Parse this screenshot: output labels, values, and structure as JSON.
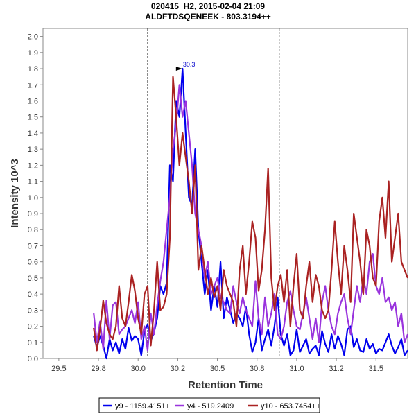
{
  "chart_data": {
    "type": "line",
    "title": "020415_H2, 2015-02-04 21:09",
    "subtitle": "ALDFTDSQENEEK - 803.3194++",
    "xlabel": "Retention Time",
    "ylabel": "Intensity 10^3",
    "xlim": [
      29.4,
      31.7
    ],
    "ylim": [
      0,
      2.05
    ],
    "x_ticks": [
      "29.5",
      "29.8",
      "30.0",
      "30.2",
      "30.5",
      "30.8",
      "31.0",
      "31.2",
      "31.5"
    ],
    "x_tick_values": [
      29.5,
      29.75,
      30.0,
      30.25,
      30.5,
      30.75,
      31.0,
      31.25,
      31.5
    ],
    "y_ticks": [
      "0.0",
      "0.1",
      "0.2",
      "0.3",
      "0.4",
      "0.5",
      "0.6",
      "0.7",
      "0.8",
      "0.9",
      "1.0",
      "1.1",
      "1.2",
      "1.3",
      "1.4",
      "1.5",
      "1.6",
      "1.7",
      "1.8",
      "1.9",
      "2.0"
    ],
    "vertical_lines": [
      30.06,
      30.89
    ],
    "peak_annotation": {
      "x": 30.3,
      "y": 1.8,
      "label": "30.3"
    },
    "legend_position": "bottom",
    "grid": false,
    "series": [
      {
        "name": "y9 - 1159.4151+",
        "color": "#0000ee",
        "x": [
          29.72,
          29.74,
          29.76,
          29.78,
          29.8,
          29.82,
          29.84,
          29.86,
          29.88,
          29.9,
          29.92,
          29.94,
          29.96,
          29.98,
          30.0,
          30.02,
          30.04,
          30.06,
          30.08,
          30.1,
          30.12,
          30.14,
          30.16,
          30.18,
          30.2,
          30.22,
          30.24,
          30.26,
          30.28,
          30.3,
          30.32,
          30.34,
          30.36,
          30.38,
          30.4,
          30.42,
          30.44,
          30.46,
          30.48,
          30.5,
          30.52,
          30.54,
          30.56,
          30.58,
          30.6,
          30.62,
          30.64,
          30.66,
          30.68,
          30.7,
          30.72,
          30.74,
          30.76,
          30.78,
          30.8,
          30.82,
          30.84,
          30.86,
          30.88,
          30.9,
          30.92,
          30.94,
          30.96,
          30.98,
          31.0,
          31.02,
          31.04,
          31.06,
          31.08,
          31.1,
          31.12,
          31.14,
          31.16,
          31.18,
          31.2,
          31.22,
          31.24,
          31.26,
          31.28,
          31.3,
          31.32,
          31.34,
          31.36,
          31.38,
          31.4,
          31.42,
          31.44,
          31.46,
          31.48,
          31.5,
          31.52,
          31.54,
          31.56,
          31.58,
          31.6,
          31.62,
          31.64,
          31.66,
          31.68,
          31.7
        ],
        "values": [
          0.14,
          0.07,
          0.14,
          0.08,
          0.0,
          0.12,
          0.05,
          0.1,
          0.03,
          0.12,
          0.06,
          0.19,
          0.11,
          0.14,
          0.12,
          0.02,
          0.17,
          0.21,
          0.11,
          0.16,
          0.25,
          0.45,
          0.4,
          0.47,
          1.2,
          1.1,
          1.6,
          1.5,
          1.8,
          1.4,
          1.0,
          0.95,
          1.3,
          0.8,
          0.6,
          0.4,
          0.55,
          0.3,
          0.45,
          0.32,
          0.6,
          0.25,
          0.38,
          0.3,
          0.22,
          0.28,
          0.25,
          0.2,
          0.32,
          0.15,
          0.04,
          0.1,
          0.25,
          0.05,
          0.12,
          0.18,
          0.08,
          0.2,
          0.38,
          0.15,
          0.08,
          0.15,
          0.02,
          0.05,
          0.18,
          0.04,
          0.08,
          0.12,
          0.03,
          0.06,
          0.08,
          0.02,
          0.17,
          0.09,
          0.04,
          0.15,
          0.06,
          0.14,
          0.09,
          0.02,
          0.18,
          0.2,
          0.07,
          0.12,
          0.05,
          0.04,
          0.12,
          0.06,
          0.09,
          0.03,
          0.06,
          0.05,
          0.1,
          0.15,
          0.08,
          0.03,
          0.07,
          0.12,
          0.02,
          0.05
        ]
      },
      {
        "name": "y4 - 519.2409+",
        "color": "#9933dd",
        "x": [
          29.72,
          29.74,
          29.76,
          29.78,
          29.8,
          29.82,
          29.84,
          29.86,
          29.88,
          29.9,
          29.92,
          29.94,
          29.96,
          29.98,
          30.0,
          30.02,
          30.04,
          30.06,
          30.08,
          30.1,
          30.12,
          30.14,
          30.16,
          30.18,
          30.2,
          30.22,
          30.24,
          30.26,
          30.28,
          30.3,
          30.32,
          30.34,
          30.36,
          30.38,
          30.4,
          30.42,
          30.44,
          30.46,
          30.48,
          30.5,
          30.52,
          30.54,
          30.56,
          30.58,
          30.6,
          30.62,
          30.64,
          30.66,
          30.68,
          30.7,
          30.72,
          30.74,
          30.76,
          30.78,
          30.8,
          30.82,
          30.84,
          30.86,
          30.88,
          30.9,
          30.92,
          30.94,
          30.96,
          30.98,
          31.0,
          31.02,
          31.04,
          31.06,
          31.08,
          31.1,
          31.12,
          31.14,
          31.16,
          31.18,
          31.2,
          31.22,
          31.24,
          31.26,
          31.28,
          31.3,
          31.32,
          31.34,
          31.36,
          31.38,
          31.4,
          31.42,
          31.44,
          31.46,
          31.48,
          31.5,
          31.52,
          31.54,
          31.56,
          31.58,
          31.6,
          31.62,
          31.64,
          31.66,
          31.68,
          31.7
        ],
        "values": [
          0.28,
          0.1,
          0.23,
          0.06,
          0.36,
          0.12,
          0.33,
          0.35,
          0.15,
          0.18,
          0.2,
          0.25,
          0.3,
          0.22,
          0.35,
          0.12,
          0.2,
          0.05,
          0.28,
          0.15,
          0.33,
          0.48,
          0.6,
          0.8,
          1.0,
          1.3,
          1.45,
          1.7,
          1.5,
          1.6,
          1.4,
          1.2,
          0.9,
          0.8,
          0.7,
          0.5,
          0.6,
          0.4,
          0.45,
          0.5,
          0.38,
          0.35,
          0.3,
          0.28,
          0.45,
          0.35,
          0.28,
          0.38,
          0.3,
          0.25,
          0.2,
          0.48,
          0.25,
          0.15,
          0.38,
          0.2,
          0.28,
          0.4,
          0.15,
          0.12,
          0.2,
          0.35,
          0.42,
          0.3,
          0.2,
          0.18,
          0.28,
          0.38,
          0.25,
          0.12,
          0.25,
          0.1,
          0.35,
          0.45,
          0.3,
          0.2,
          0.15,
          0.28,
          0.35,
          0.4,
          0.25,
          0.15,
          0.3,
          0.45,
          0.35,
          0.5,
          0.4,
          0.6,
          0.65,
          0.45,
          0.4,
          0.5,
          0.35,
          0.38,
          0.3,
          0.35,
          0.2,
          0.28,
          0.1,
          0.15
        ]
      },
      {
        "name": "y10 - 653.7454++",
        "color": "#aa2222",
        "x": [
          29.72,
          29.74,
          29.76,
          29.78,
          29.8,
          29.82,
          29.84,
          29.86,
          29.88,
          29.9,
          29.92,
          29.94,
          29.96,
          29.98,
          30.0,
          30.02,
          30.04,
          30.06,
          30.08,
          30.1,
          30.12,
          30.14,
          30.16,
          30.18,
          30.2,
          30.22,
          30.24,
          30.26,
          30.28,
          30.3,
          30.32,
          30.34,
          30.36,
          30.38,
          30.4,
          30.42,
          30.44,
          30.46,
          30.48,
          30.5,
          30.52,
          30.54,
          30.56,
          30.58,
          30.6,
          30.62,
          30.64,
          30.66,
          30.68,
          30.7,
          30.72,
          30.74,
          30.76,
          30.78,
          30.8,
          30.82,
          30.84,
          30.86,
          30.88,
          30.9,
          30.92,
          30.94,
          30.96,
          30.98,
          31.0,
          31.02,
          31.04,
          31.06,
          31.08,
          31.1,
          31.12,
          31.14,
          31.16,
          31.18,
          31.2,
          31.22,
          31.24,
          31.26,
          31.28,
          31.3,
          31.32,
          31.34,
          31.36,
          31.38,
          31.4,
          31.42,
          31.44,
          31.46,
          31.48,
          31.5,
          31.52,
          31.54,
          31.56,
          31.58,
          31.6,
          31.62,
          31.64,
          31.66,
          31.68,
          31.7
        ],
        "values": [
          0.19,
          0.05,
          0.18,
          0.36,
          0.22,
          0.15,
          0.12,
          0.2,
          0.45,
          0.25,
          0.2,
          0.35,
          0.52,
          0.42,
          0.25,
          0.15,
          0.4,
          0.45,
          0.08,
          0.3,
          0.6,
          0.3,
          0.32,
          0.4,
          0.75,
          1.75,
          1.5,
          1.2,
          1.4,
          1.25,
          1.1,
          0.9,
          1.2,
          0.55,
          0.7,
          0.55,
          0.4,
          0.5,
          0.38,
          0.45,
          0.3,
          0.55,
          0.45,
          0.4,
          0.35,
          0.2,
          0.55,
          0.7,
          0.4,
          0.6,
          0.85,
          0.75,
          0.42,
          0.55,
          0.8,
          1.18,
          0.5,
          0.3,
          0.45,
          0.52,
          0.35,
          0.55,
          0.2,
          0.45,
          0.65,
          0.3,
          0.25,
          0.45,
          0.6,
          0.35,
          0.52,
          0.45,
          0.3,
          0.25,
          0.3,
          0.55,
          0.85,
          0.6,
          0.4,
          0.7,
          0.55,
          0.35,
          0.9,
          0.75,
          0.6,
          0.4,
          0.8,
          0.7,
          0.5,
          0.45,
          0.85,
          1.0,
          0.75,
          1.1,
          0.6,
          0.75,
          0.9,
          0.6,
          0.55,
          0.5
        ]
      }
    ]
  }
}
